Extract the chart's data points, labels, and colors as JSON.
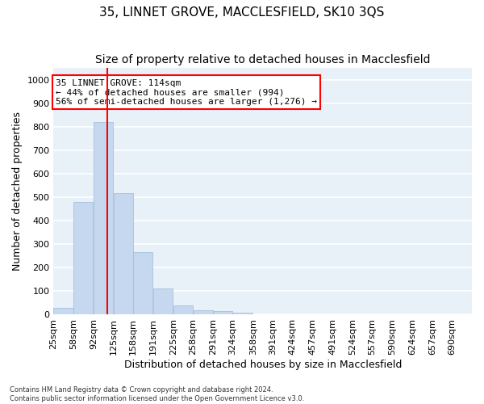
{
  "title1": "35, LINNET GROVE, MACCLESFIELD, SK10 3QS",
  "title2": "Size of property relative to detached houses in Macclesfield",
  "xlabel": "Distribution of detached houses by size in Macclesfield",
  "ylabel": "Number of detached properties",
  "footnote1": "Contains HM Land Registry data © Crown copyright and database right 2024.",
  "footnote2": "Contains public sector information licensed under the Open Government Licence v3.0.",
  "annotation_line1": "35 LINNET GROVE: 114sqm",
  "annotation_line2": "← 44% of detached houses are smaller (994)",
  "annotation_line3": "56% of semi-detached houses are larger (1,276) →",
  "bar_color": "#c5d8f0",
  "bar_edge_color": "#a0b8d8",
  "vline_x": 114,
  "vline_color": "red",
  "categories": [
    "25sqm",
    "58sqm",
    "92sqm",
    "125sqm",
    "158sqm",
    "191sqm",
    "225sqm",
    "258sqm",
    "291sqm",
    "324sqm",
    "358sqm",
    "391sqm",
    "424sqm",
    "457sqm",
    "491sqm",
    "524sqm",
    "557sqm",
    "590sqm",
    "624sqm",
    "657sqm",
    "690sqm"
  ],
  "bin_edges": [
    25,
    58,
    92,
    125,
    158,
    191,
    225,
    258,
    291,
    324,
    358,
    391,
    424,
    457,
    491,
    524,
    557,
    590,
    624,
    657,
    690
  ],
  "bin_width": 33,
  "values": [
    28,
    478,
    820,
    515,
    265,
    110,
    38,
    18,
    14,
    8,
    0,
    0,
    0,
    0,
    0,
    0,
    0,
    0,
    0,
    0,
    0
  ],
  "ylim": [
    0,
    1050
  ],
  "yticks": [
    0,
    100,
    200,
    300,
    400,
    500,
    600,
    700,
    800,
    900,
    1000
  ],
  "background_color": "#e8f0f8",
  "grid_color": "white",
  "title_fontsize": 11,
  "subtitle_fontsize": 10,
  "ylabel_fontsize": 9,
  "xlabel_fontsize": 9,
  "tick_fontsize": 8,
  "annot_fontsize": 8,
  "footnote_fontsize": 6
}
